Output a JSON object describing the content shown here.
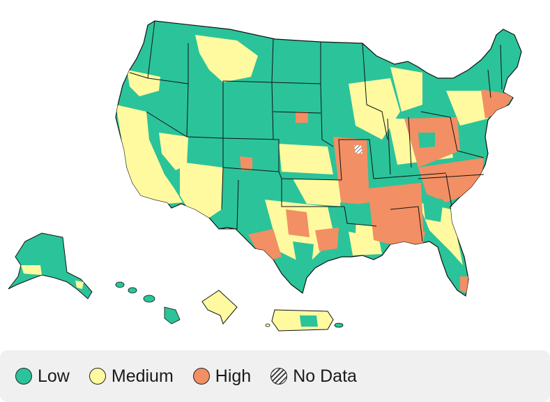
{
  "map": {
    "colors": {
      "low": "#2bc39a",
      "medium": "#fffa9f",
      "high": "#f28f64",
      "no_data": "hatched",
      "border": "#111111"
    }
  },
  "legend": {
    "items": [
      {
        "label": "Low",
        "color": "#2bc39a",
        "icon": "circle-swatch"
      },
      {
        "label": "Medium",
        "color": "#fffa9f",
        "icon": "circle-swatch"
      },
      {
        "label": "High",
        "color": "#f28f64",
        "icon": "circle-swatch"
      },
      {
        "label": "No Data",
        "color": "hatched",
        "icon": "hatched-circle-swatch"
      }
    ]
  }
}
